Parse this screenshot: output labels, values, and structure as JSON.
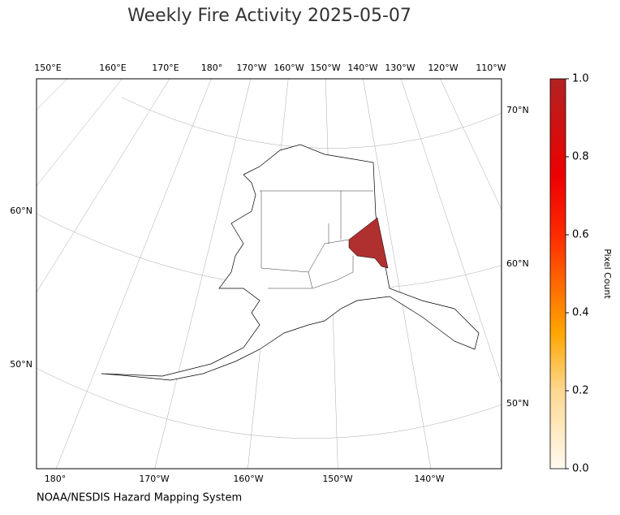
{
  "title": "Weekly Fire Activity 2025-05-07",
  "map": {
    "top_labels": [
      "150°E",
      "160°E",
      "170°E",
      "180°",
      "170°W",
      "160°W",
      "150°W",
      "140°W",
      "130°W",
      "120°W",
      "110°W"
    ],
    "bottom_labels": [
      "180°",
      "170°W",
      "160°W",
      "150°W",
      "140°W"
    ],
    "left_labels": [
      "60°N",
      "50°N"
    ],
    "right_labels": [
      "70°N",
      "60°N",
      "50°N"
    ]
  },
  "colorbar": {
    "label": "Pixel Count",
    "range": [
      0,
      1
    ],
    "ticks": [
      {
        "value": 0,
        "label": "0.0"
      },
      {
        "value": 0.2,
        "label": "0.2"
      },
      {
        "value": 0.4,
        "label": "0.4"
      },
      {
        "value": 0.6,
        "label": "0.6"
      },
      {
        "value": 0.8,
        "label": "0.8"
      },
      {
        "value": 1,
        "label": "1.0"
      }
    ]
  },
  "footer": "NOAA/NESDIS Hazard Mapping System"
}
